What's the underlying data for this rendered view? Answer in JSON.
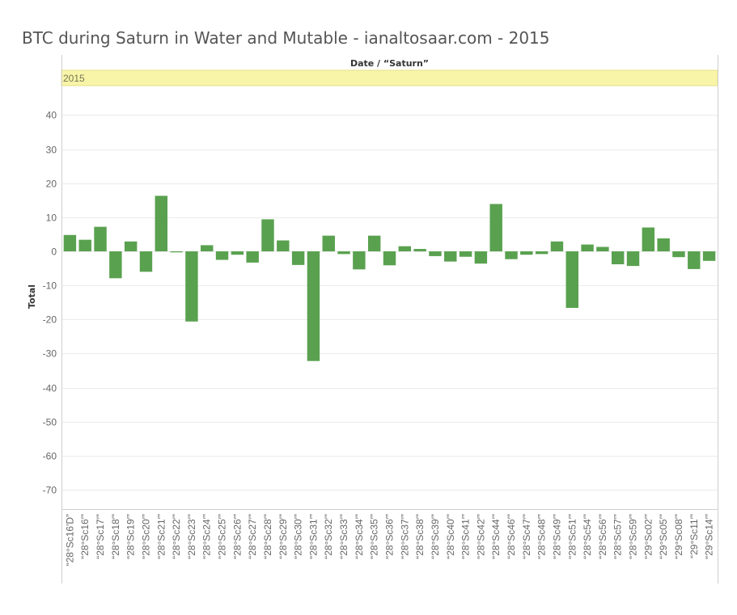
{
  "title": "BTC during Saturn in Water and Mutable - ianaltosaar.com - 2015",
  "colors": {
    "bar": "#59a14f",
    "band": "#f8f5a8",
    "band_border": "#e8e08a",
    "grid": "#ebebeb",
    "axis": "#d0d0d0"
  },
  "chart_data": {
    "type": "bar",
    "title": "BTC during Saturn in Water and Mutable - ianaltosaar.com - 2015",
    "column_header": "Date / “Saturn”",
    "column_group": "2015",
    "ylabel": "Total",
    "xlabel": "",
    "ylim": [
      -75,
      47
    ],
    "yticks": [
      40,
      30,
      20,
      10,
      0,
      -10,
      -20,
      -30,
      -40,
      -50,
      -60,
      -70
    ],
    "grid": true,
    "legend": "none",
    "categories": [
      "“28°Sc16′D”",
      "“28°Sc16′”",
      "“28°Sc17′”",
      "“28°Sc18′”",
      "“28°Sc19′”",
      "“28°Sc20′”",
      "“28°Sc21′”",
      "“28°Sc22′”",
      "“28°Sc23′”",
      "“28°Sc24′”",
      "“28°Sc25′”",
      "“28°Sc26′”",
      "“28°Sc27′”",
      "“28°Sc28′”",
      "“28°Sc29′”",
      "“28°Sc30′”",
      "“28°Sc31′”",
      "“28°Sc32′”",
      "“28°Sc33′”",
      "“28°Sc34′”",
      "“28°Sc35′”",
      "“28°Sc36′”",
      "“28°Sc37′”",
      "“28°Sc38′”",
      "“28°Sc39′”",
      "“28°Sc40′”",
      "“28°Sc41′”",
      "“28°Sc42′”",
      "“28°Sc44′”",
      "“28°Sc46′”",
      "“28°Sc47′”",
      "“28°Sc48′”",
      "“28°Sc49′”",
      "“28°Sc51′”",
      "“28°Sc54′”",
      "“28°Sc56′”",
      "“28°Sc57′”",
      "“28°Sc59′”",
      "“29°Sc02′”",
      "“29°Sc05′”",
      "“29°Sc08′”",
      "“29°Sc11′”",
      "“29°Sc14′”"
    ],
    "values": [
      4.8,
      3.4,
      7.2,
      -7.9,
      2.9,
      -6.0,
      16.3,
      -0.3,
      -20.6,
      1.8,
      -2.5,
      -1.0,
      -3.3,
      9.4,
      3.2,
      -4.0,
      -32.2,
      4.6,
      -0.8,
      -5.3,
      4.6,
      -4.1,
      1.5,
      0.7,
      -1.4,
      -3.0,
      -1.6,
      -3.6,
      13.9,
      -2.3,
      -1.0,
      -0.8,
      2.9,
      -16.6,
      2.0,
      1.3,
      -3.8,
      -4.3,
      7.0,
      3.8,
      -1.7,
      -5.2,
      -2.8
    ]
  }
}
